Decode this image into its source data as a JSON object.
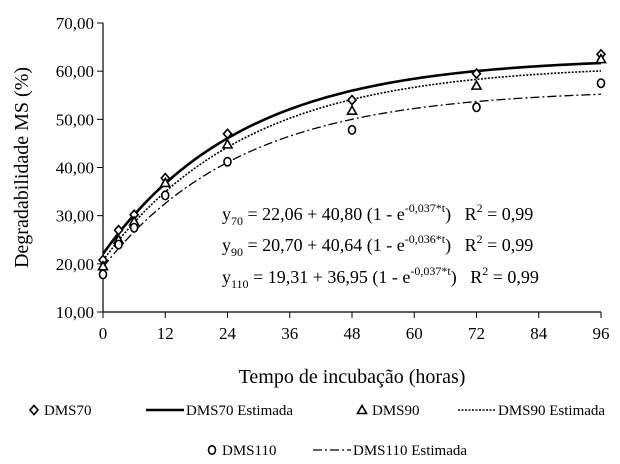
{
  "chart_data": {
    "type": "scatter",
    "xlabel": "Tempo de incubação (horas)",
    "ylabel": "Degradabilidade MS (%)",
    "xlim": [
      0,
      96
    ],
    "ylim": [
      10,
      70
    ],
    "x_ticks": [
      "0",
      "12",
      "24",
      "36",
      "48",
      "60",
      "72",
      "84",
      "96"
    ],
    "y_ticks": [
      "10,00",
      "20,00",
      "30,00",
      "40,00",
      "50,00",
      "60,00",
      "70,00"
    ],
    "grid": false,
    "legend_position": "bottom",
    "series": [
      {
        "name": "DMS70",
        "kind": "points",
        "marker": "diamond",
        "x": [
          0,
          3,
          6,
          12,
          24,
          48,
          72,
          96
        ],
        "y": [
          20.8,
          27.0,
          30.2,
          37.8,
          47.0,
          54.0,
          59.5,
          63.5
        ]
      },
      {
        "name": "DMS70 Estimada",
        "kind": "curve",
        "style": "solid",
        "a": 22.06,
        "b": 40.8,
        "c": 0.037
      },
      {
        "name": "DMS90",
        "kind": "points",
        "marker": "triangle",
        "x": [
          0,
          3,
          6,
          12,
          24,
          48,
          72,
          96
        ],
        "y": [
          19.5,
          25.0,
          28.8,
          36.8,
          44.8,
          51.8,
          57.0,
          62.5
        ]
      },
      {
        "name": "DMS90 Estimada",
        "kind": "curve",
        "style": "dotted",
        "a": 20.7,
        "b": 40.64,
        "c": 0.036
      },
      {
        "name": "DMS110",
        "kind": "points",
        "marker": "circle",
        "x": [
          0,
          3,
          6,
          12,
          24,
          48,
          72,
          96
        ],
        "y": [
          17.8,
          24.0,
          27.5,
          34.2,
          41.2,
          47.8,
          52.5,
          57.5
        ]
      },
      {
        "name": "DMS110 Estimada",
        "kind": "curve",
        "style": "dashdot",
        "a": 19.31,
        "b": 36.95,
        "c": 0.037
      }
    ],
    "equations": [
      {
        "y": "y",
        "sub": "70",
        "body": " = 22,06 + 40,80 (1 - e",
        "exp": "-0,037*t",
        "tail": ")",
        "r2_label": "R",
        "r2_exp": "2",
        "r2_val": " = 0,99"
      },
      {
        "y": "y",
        "sub": "90",
        "body": " = 20,70 + 40,64 (1 - e",
        "exp": "-0,036*t",
        "tail": ")",
        "r2_label": "R",
        "r2_exp": "2",
        "r2_val": " = 0,99"
      },
      {
        "y": "y",
        "sub": "110",
        "body": " = 19,31 + 36,95 (1 - e",
        "exp": "-0,037*t",
        "tail": ")",
        "r2_label": "R",
        "r2_exp": "2",
        "r2_val": " = 0,99"
      }
    ]
  }
}
